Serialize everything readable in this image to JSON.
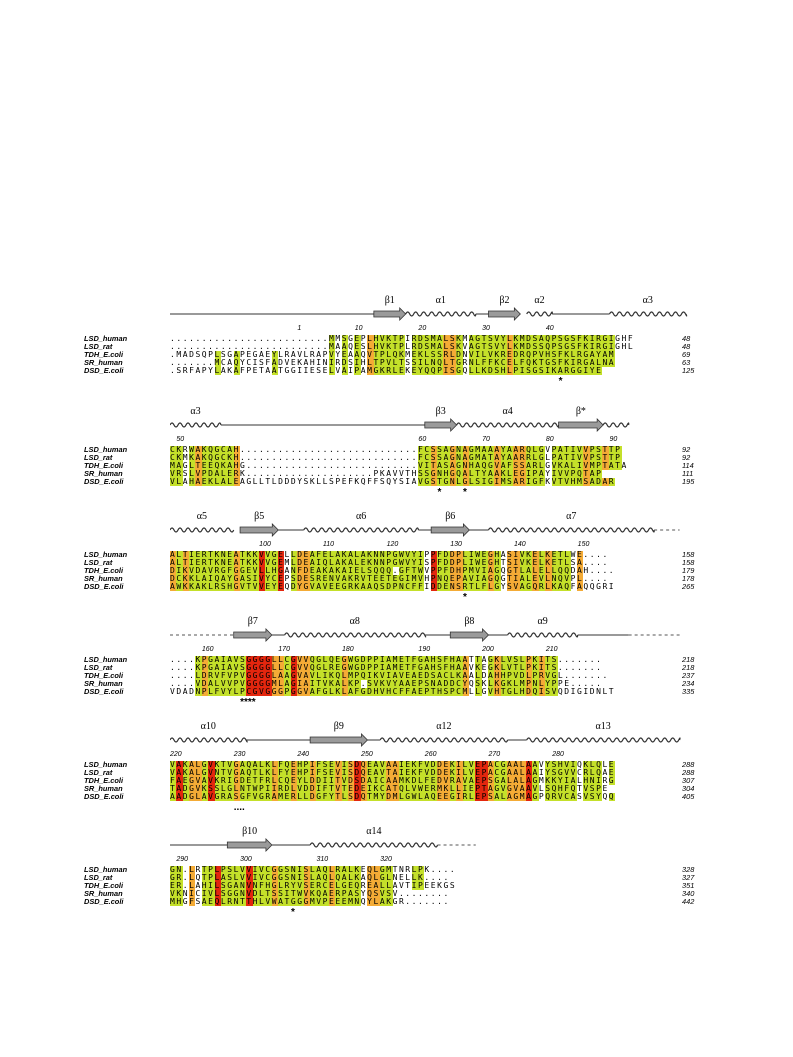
{
  "palette": {
    "none": "#ffffff",
    "low": "#c4e02a",
    "mid": "#f4ab36",
    "high": "#e3260e"
  },
  "names": [
    "LSD_human",
    "LSD_rat",
    "TDH_E.coli",
    "SR_human",
    "DSD_E.coli"
  ],
  "blocks": [
    {
      "ss_elements": [
        {
          "type": "line",
          "from": 0,
          "to": 32
        },
        {
          "type": "strand",
          "label": "β1",
          "from": 32,
          "to": 37
        },
        {
          "type": "helix",
          "label": "α1",
          "from": 37,
          "to": 48
        },
        {
          "type": "line",
          "from": 48,
          "to": 50
        },
        {
          "type": "strand",
          "label": "β2",
          "from": 50,
          "to": 55
        },
        {
          "type": "helix",
          "label": "α2",
          "from": 56,
          "to": 60
        },
        {
          "type": "line",
          "from": 60,
          "to": 69
        },
        {
          "type": "helix",
          "label": "α3",
          "from": 69,
          "to": 81
        }
      ],
      "numbers": [
        {
          "label": "1",
          "col": 20
        },
        {
          "label": "10",
          "col": 29
        },
        {
          "label": "20",
          "col": 39
        },
        {
          "label": "30",
          "col": 49
        },
        {
          "label": "40",
          "col": 59
        }
      ],
      "rows": [
        {
          "seq": ".........................MMSGEPLHVKTPIRDSMALSKMAGTSVYLKMDSAQPSGSFKIRGIGHF",
          "end": "48"
        },
        {
          "seq": ".........................MAAQESLHVKTPLRDSMALSKVAGTSVYLKMDSSQPSGSFKIRGIGHL",
          "end": "48"
        },
        {
          "seq": ".MADSQPLSGAPEGAEYLRAVLRAPVYEAAQVTPLQKMEKLSSRLDNVILVKREDRQPVHSFKLRGAYAM",
          "end": "69"
        },
        {
          "seq": ".......MCAQYCISFADVEKAHINIRDSIHLTPVLTSSILNQLTGRNLFFKCELFQKTGSFKIRGALNA",
          "end": "63"
        },
        {
          "seq": ".SRFAPYLAKAFPETAATGGIIESELVAIPAMGKRLEKEYQQPISGQLLKDSHLPISGSIKARGGIYE",
          "end": "125"
        }
      ],
      "marks": [
        {
          "symbol": "*",
          "col": 61
        }
      ]
    },
    {
      "ss_elements": [
        {
          "type": "helix",
          "label": "α3",
          "from": 0,
          "to": 8
        },
        {
          "type": "line",
          "from": 8,
          "to": 40
        },
        {
          "type": "strand",
          "label": "β3",
          "from": 40,
          "to": 45
        },
        {
          "type": "helix",
          "label": "α4",
          "from": 45,
          "to": 61
        },
        {
          "type": "strand",
          "label": "β*",
          "from": 61,
          "to": 68
        },
        {
          "type": "helix",
          "label": "",
          "from": 68,
          "to": 72
        }
      ],
      "numbers": [
        {
          "label": "50",
          "col": 1
        },
        {
          "label": "60",
          "col": 39
        },
        {
          "label": "70",
          "col": 49
        },
        {
          "label": "80",
          "col": 59
        },
        {
          "label": "90",
          "col": 69
        }
      ],
      "rows": [
        {
          "seq": "CKRWAKQGCAH............................FCSSAGNAGMAAAYAARQLGVPATIVVPSTTP",
          "end": "92"
        },
        {
          "seq": "CKMKAKQGCKH............................FCSSAGNAGMATAYAARRLGLPATIVVPSTTP",
          "end": "92"
        },
        {
          "seq": "MAGLTEEQKAHG...........................VITASAGNHAQGVAFSSARLGVKALIVMPTATA",
          "end": "114"
        },
        {
          "seq": "VRSLVPDALERK....................PKAVVTHSSGNHGQALTYAAKLEGIPAYIVVPQTAP",
          "end": "111"
        },
        {
          "seq": "VLAHAEKLALEAGLLTLDDDYSKLLSPEFKQFFSQYSIAVGSTGNLGLSIGIMSARIGFKVTVHMSADAR",
          "end": "195"
        }
      ],
      "marks": [
        {
          "symbol": "*",
          "col": 42
        },
        {
          "symbol": "*",
          "col": 46
        }
      ]
    },
    {
      "ss_elements": [
        {
          "type": "helix",
          "label": "α5",
          "from": 0,
          "to": 10
        },
        {
          "type": "strand",
          "label": "β5",
          "from": 11,
          "to": 17
        },
        {
          "type": "line",
          "from": 17,
          "to": 21
        },
        {
          "type": "helix",
          "label": "α6",
          "from": 21,
          "to": 39
        },
        {
          "type": "line",
          "from": 39,
          "to": 41
        },
        {
          "type": "strand",
          "label": "β6",
          "from": 41,
          "to": 47
        },
        {
          "type": "line",
          "from": 47,
          "to": 50
        },
        {
          "type": "helix",
          "label": "α7",
          "from": 50,
          "to": 76
        },
        {
          "type": "dash",
          "from": 76,
          "to": 80
        }
      ],
      "numbers": [
        {
          "label": "100",
          "col": 14
        },
        {
          "label": "110",
          "col": 24
        },
        {
          "label": "120",
          "col": 34
        },
        {
          "label": "130",
          "col": 44
        },
        {
          "label": "140",
          "col": 54
        },
        {
          "label": "150",
          "col": 64
        }
      ],
      "rows": [
        {
          "seq": "ALTIERTKNEATKKVVGELLDEAFELAKALAKNNPGWVYIPPFDDPLIWEGHASIVKELKETLWE....",
          "end": "158"
        },
        {
          "seq": "ALTIERTKNEATKKVVGEMLDEAIQLAKALEKNNPGWVYISPFDDPLIWEGHTSIVKELKETLSA....",
          "end": "158"
        },
        {
          "seq": "DIKVDAVRGFGGEVLLHGANFDEAKAKAIELSQQQ.GFTWVPPFDHPMVIAGQGTLALELLQQDAH....",
          "end": "179"
        },
        {
          "seq": "DCKKLAIQAYGASIVYCEPSDESRENVAKRVTEETEGIMVHPNQEPAVIAGQGTIALEVLNQVPL....",
          "end": "178"
        },
        {
          "seq": "AWKKAKLRSHGVTVVEYEQDYGVAVEEGRKAAQSDPNCFFIDDENSRTLFLGYSVAGQRLKAQFAQQGRI",
          "end": "265"
        }
      ],
      "marks": [
        {
          "symbol": "*",
          "col": 46
        }
      ]
    },
    {
      "ss_elements": [
        {
          "type": "dash",
          "from": 0,
          "to": 10
        },
        {
          "type": "strand",
          "label": "β7",
          "from": 10,
          "to": 16
        },
        {
          "type": "line",
          "from": 16,
          "to": 18
        },
        {
          "type": "helix",
          "label": "α8",
          "from": 18,
          "to": 40
        },
        {
          "type": "line",
          "from": 40,
          "to": 44
        },
        {
          "type": "strand",
          "label": "β8",
          "from": 44,
          "to": 50
        },
        {
          "type": "line",
          "from": 50,
          "to": 53
        },
        {
          "type": "helix",
          "label": "α9",
          "from": 53,
          "to": 64
        },
        {
          "type": "line",
          "from": 64,
          "to": 72
        },
        {
          "type": "dash",
          "from": 72,
          "to": 80
        }
      ],
      "numbers": [
        {
          "label": "160",
          "col": 5
        },
        {
          "label": "170",
          "col": 17
        },
        {
          "label": "180",
          "col": 27
        },
        {
          "label": "190",
          "col": 39
        },
        {
          "label": "200",
          "col": 49
        },
        {
          "label": "210",
          "col": 59
        }
      ],
      "rows": [
        {
          "seq": "....KPGAIAVSGGGGLLCGVVQGLQEGWGDPPIAMETFGAHSFHAATTAGKLVSLPKITS.......",
          "end": "218"
        },
        {
          "seq": "....KPGAIAVSGGGGLLCGVVQGLREGWGDPPIAMETFGAHSFHAAVKEGKLVTLPKITS.......",
          "end": "218"
        },
        {
          "seq": "....LDRVFVPVGGGGLAAGVAVLIKQLMPQIKVIAVEAEDSACLKAALDAHHPVDLPRVGL.......",
          "end": "237"
        },
        {
          "seq": "....VDALVVPVGGGGMLAGIAITVKALKP.SVKVYAAEPSNADDCYQSKLKGKLMPNLYPPE.....",
          "end": "234"
        },
        {
          "seq": "VDADNPLFVYLPCGVGGGPGGVAFGLKLAFGDHVHCFFAEPTHSPCMLLGVHTGLHDQISVQDIGIDNLT",
          "end": "335"
        }
      ],
      "marks": [
        {
          "symbol": "****",
          "col": 11
        }
      ]
    },
    {
      "ss_elements": [
        {
          "type": "helix",
          "label": "α10",
          "from": 0,
          "to": 12
        },
        {
          "type": "line",
          "from": 12,
          "to": 22
        },
        {
          "type": "strand",
          "label": "β9",
          "from": 22,
          "to": 31
        },
        {
          "type": "line",
          "from": 31,
          "to": 33
        },
        {
          "type": "helix",
          "label": "α12",
          "from": 33,
          "to": 53
        },
        {
          "type": "line",
          "from": 53,
          "to": 56
        },
        {
          "type": "helix",
          "label": "α13",
          "from": 56,
          "to": 80
        }
      ],
      "numbers": [
        {
          "label": "220",
          "col": 0
        },
        {
          "label": "230",
          "col": 10
        },
        {
          "label": "240",
          "col": 20
        },
        {
          "label": "250",
          "col": 30
        },
        {
          "label": "260",
          "col": 40
        },
        {
          "label": "270",
          "col": 50
        },
        {
          "label": "280",
          "col": 60
        }
      ],
      "rows": [
        {
          "seq": "VAKALGVKTVGAQALKLFQEHPIFSEVISDQEAVAAIEKFVDDEKILVEPACGAALAAVYSHVIQKLQLE",
          "end": "288"
        },
        {
          "seq": "VAKALGVNTVGAQTLKLFYEHPIFSEVISDQEAVTAIEKFVDDEKILVEPACGAALAAIYSGVVCRLQAE",
          "end": "288"
        },
        {
          "seq": "FAEGVAVKRIGDETFRLCQEYLDDIITVDSDAICAAMKDLFEDVRAVAEPSGALALAGMKKYIALHNIRG",
          "end": "307"
        },
        {
          "seq": "TADGVKSSLGLNTWPIIRDLVDDIFTVTEDEIKCATQLVWERMKLLIEPTAGVGVAAVLSQHFQTVSPE",
          "end": "304"
        },
        {
          "seq": "AADGLAVGRASGFVGRAMERLLDGFYTLSDQTMYDMLGWLAQEEGIRLEPSALAGMAGPQRVCASVSYQQ",
          "end": "405"
        }
      ],
      "marks": [
        {
          "symbol": "....",
          "col": 10
        }
      ]
    },
    {
      "ss_elements": [
        {
          "type": "line",
          "from": 0,
          "to": 9
        },
        {
          "type": "strand",
          "label": "β10",
          "from": 9,
          "to": 16
        },
        {
          "type": "line",
          "from": 16,
          "to": 22
        },
        {
          "type": "helix",
          "label": "α14",
          "from": 22,
          "to": 42
        },
        {
          "type": "dash",
          "from": 42,
          "to": 48
        }
      ],
      "numbers": [
        {
          "label": "290",
          "col": 1
        },
        {
          "label": "300",
          "col": 11
        },
        {
          "label": "310",
          "col": 23
        },
        {
          "label": "320",
          "col": 33
        }
      ],
      "rows": [
        {
          "seq": "GN.LRTPLPSLVVIVCGGSNISLAQLRALKEQLGMTNRLPK....",
          "end": "328"
        },
        {
          "seq": "GR.LQTPLASLVVIVCGGSNISLAQLQALKAQLGLNELLK....",
          "end": "327"
        },
        {
          "seq": "ER.LAHILSGANVNFHGLRYVSERCELGEQREALLAVTIPEEKGS",
          "end": "351"
        },
        {
          "seq": "VKNICIVLSGGNVDLTSSITWVKQAERPASYQSVSV........",
          "end": "340"
        },
        {
          "seq": "MHGFSAEQLRNTTHLVWATGGGMVPEEEMNQYLAKGR.......",
          "end": "442"
        }
      ],
      "marks": [
        {
          "symbol": "*",
          "col": 19
        }
      ]
    }
  ]
}
